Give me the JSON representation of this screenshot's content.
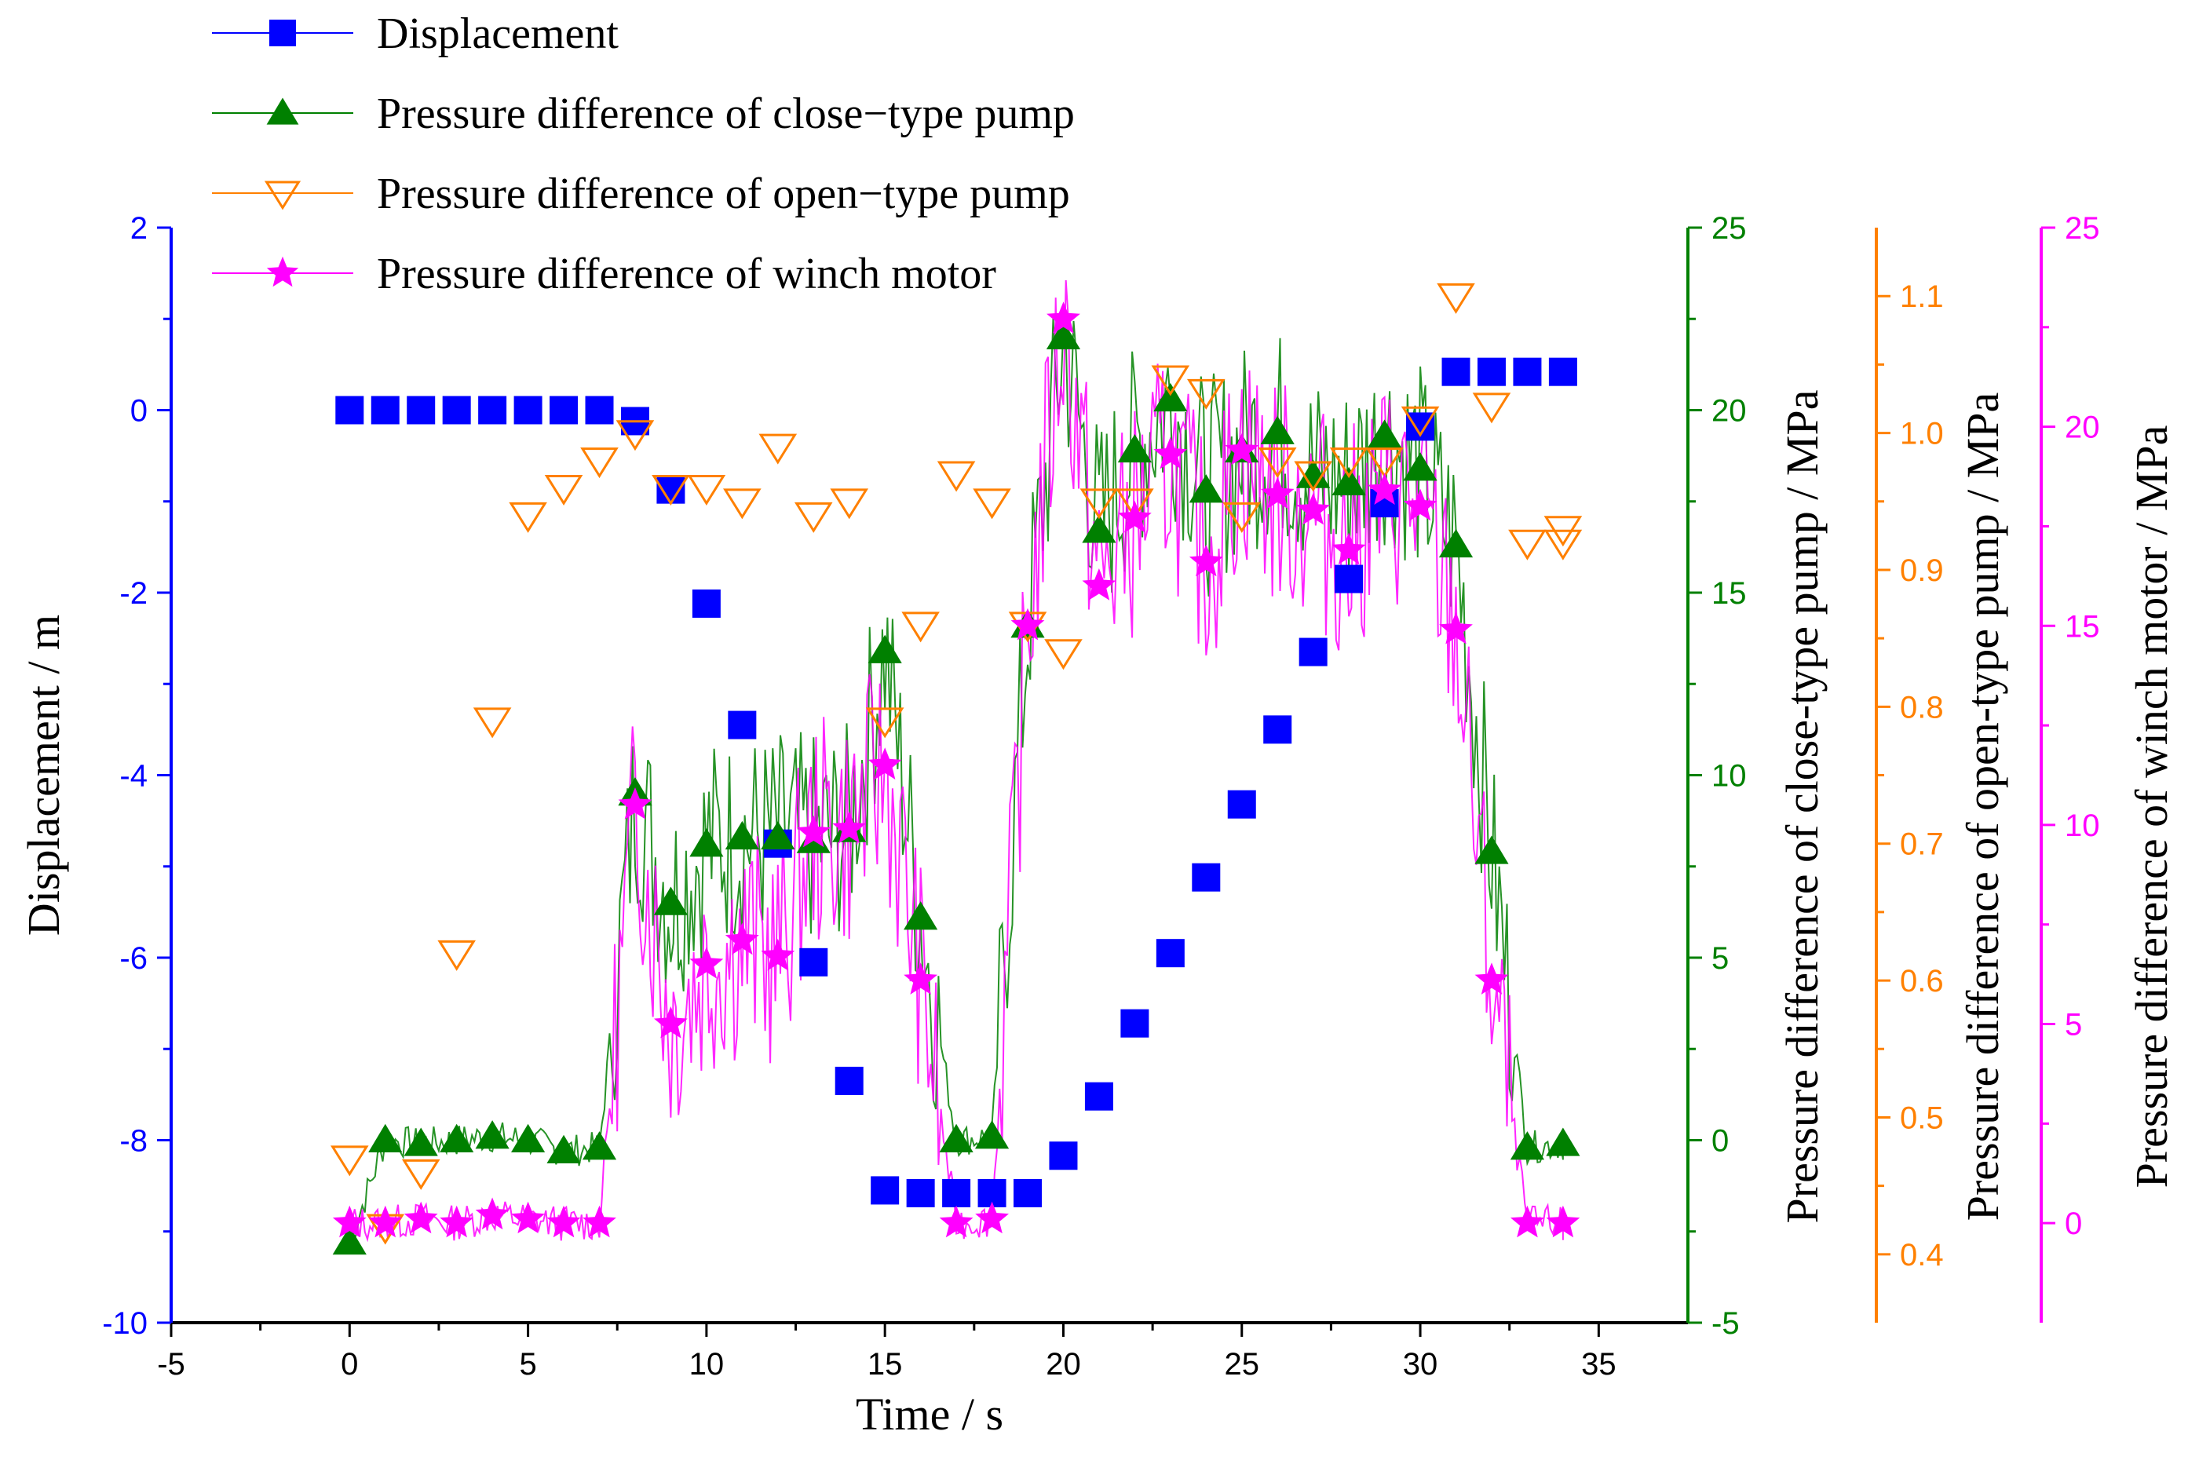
{
  "chart_data": {
    "type": "scatter",
    "colors": {
      "displacement": "#0000ff",
      "close_pump": "#008000",
      "open_pump": "#ff8000",
      "winch_motor": "#ff00ff",
      "frame": "#000000"
    },
    "x_axis": {
      "label": "Time / s",
      "range": [
        -5,
        37.5
      ],
      "ticks": [
        -5,
        0,
        5,
        10,
        15,
        20,
        25,
        30,
        35
      ],
      "tick_labels": [
        "-5",
        "0",
        "5",
        "10",
        "15",
        "20",
        "25",
        "30",
        "35"
      ]
    },
    "y_axes": [
      {
        "id": "displacement",
        "label": "Displacement  / m",
        "range": [
          -10,
          2
        ],
        "ticks": [
          -10,
          -8,
          -6,
          -4,
          -2,
          0,
          2
        ],
        "tick_labels": [
          "-10",
          "-8",
          "-6",
          "-4",
          "-2",
          "0",
          "2"
        ],
        "color": "#0000ff"
      },
      {
        "id": "close_pump",
        "label": "Pressure difference of close-type pump  / MPa",
        "range": [
          -5,
          25
        ],
        "ticks": [
          -5,
          0,
          5,
          10,
          15,
          20,
          25
        ],
        "tick_labels": [
          "-5",
          "0",
          "5",
          "10",
          "15",
          "20",
          "25"
        ],
        "color": "#008000"
      },
      {
        "id": "open_pump",
        "label": "Pressure difference of open-type pump  / MPa",
        "range": [
          0.35,
          1.15
        ],
        "ticks": [
          0.4,
          0.5,
          0.6,
          0.7,
          0.8,
          0.9,
          1.0,
          1.1
        ],
        "tick_labels": [
          "0.4",
          "0.5",
          "0.6",
          "0.7",
          "0.8",
          "0.9",
          "1.0",
          "1.1"
        ],
        "color": "#ff8000"
      },
      {
        "id": "winch_motor",
        "label": "Pressure difference of winch motor  / MPa",
        "range": [
          -2.5,
          25
        ],
        "ticks": [
          0,
          5,
          10,
          15,
          20,
          25
        ],
        "tick_labels": [
          "0",
          "5",
          "10",
          "15",
          "20",
          "25"
        ],
        "color": "#ff00ff"
      }
    ],
    "series": [
      {
        "name": "Displacement",
        "axis": "displacement",
        "marker": "square",
        "x": [
          0,
          1,
          2,
          3,
          4,
          5,
          6,
          7,
          8,
          9,
          10,
          11,
          12,
          13,
          14,
          15,
          16,
          17,
          18,
          19,
          20,
          21,
          22,
          23,
          24,
          25,
          26,
          27,
          28,
          29,
          30,
          31,
          32,
          33,
          34
        ],
        "y": [
          0,
          0,
          0,
          0,
          0,
          0,
          0,
          0,
          -0.12,
          -0.87,
          -2.12,
          -3.45,
          -4.75,
          -6.05,
          -7.35,
          -8.55,
          -8.58,
          -8.58,
          -8.58,
          -8.58,
          -8.17,
          -7.52,
          -6.72,
          -5.95,
          -5.12,
          -4.32,
          -3.5,
          -2.65,
          -1.85,
          -1.02,
          -0.18,
          0.42,
          0.42,
          0.42,
          0.42
        ]
      },
      {
        "name": "Pressure difference of close−type pump",
        "axis": "close_pump",
        "marker": "triangle-up",
        "x": [
          0,
          1,
          2,
          3,
          4,
          5,
          6,
          7,
          8,
          9,
          10,
          11,
          12,
          13,
          14,
          15,
          16,
          17,
          18,
          19,
          20,
          21,
          22,
          23,
          24,
          25,
          26,
          27,
          28,
          29,
          30,
          31,
          32,
          33,
          34
        ],
        "y": [
          -2.8,
          0,
          -0.1,
          0,
          0.1,
          0,
          -0.3,
          -0.2,
          9.5,
          6.5,
          8.1,
          8.3,
          8.3,
          8.2,
          8.5,
          13.4,
          6.1,
          0,
          0.1,
          14.1,
          22.0,
          16.7,
          18.9,
          20.3,
          17.8,
          18.9,
          19.4,
          18.2,
          18.0,
          19.3,
          18.4,
          16.3,
          7.9,
          -0.2,
          -0.1
        ]
      },
      {
        "name": "Pressure difference of open−type pump",
        "axis": "open_pump",
        "marker": "triangle-down-open",
        "x": [
          0,
          1,
          2,
          3,
          4,
          5,
          6,
          7,
          8,
          9,
          10,
          11,
          12,
          13,
          14,
          15,
          16,
          17,
          18,
          19,
          20,
          21,
          22,
          23,
          24,
          25,
          26,
          27,
          28,
          29,
          30,
          31,
          32,
          33,
          34,
          34
        ],
        "y": [
          0.47,
          0.42,
          0.46,
          0.62,
          0.79,
          0.94,
          0.96,
          0.98,
          1.0,
          0.96,
          0.96,
          0.95,
          0.99,
          0.94,
          0.95,
          0.79,
          0.86,
          0.97,
          0.95,
          0.86,
          0.84,
          0.95,
          0.95,
          1.04,
          1.03,
          0.94,
          0.98,
          0.97,
          0.98,
          0.98,
          1.01,
          1.1,
          1.02,
          0.92,
          0.92,
          0.93
        ]
      },
      {
        "name": "Pressure difference of winch motor",
        "axis": "winch_motor",
        "marker": "star",
        "x": [
          0,
          1,
          2,
          3,
          4,
          5,
          6,
          7,
          8,
          9,
          10,
          11,
          12,
          13,
          14,
          15,
          16,
          17,
          18,
          19,
          20,
          21,
          22,
          23,
          24,
          25,
          26,
          27,
          28,
          29,
          30,
          31,
          32,
          33,
          34
        ],
        "y": [
          0,
          0,
          0.1,
          0,
          0.2,
          0.1,
          0,
          0,
          10.5,
          5.0,
          6.5,
          7.1,
          6.7,
          9.8,
          9.9,
          11.5,
          6.1,
          0,
          0.1,
          15.0,
          22.7,
          16.0,
          17.7,
          19.3,
          16.6,
          19.4,
          18.3,
          17.9,
          16.9,
          18.4,
          18.0,
          14.9,
          6.1,
          0,
          0
        ]
      }
    ],
    "legend": {
      "position": "top-left",
      "entries": [
        "Displacement",
        "Pressure difference of close−type pump",
        "Pressure difference of open−type pump",
        "Pressure difference of winch motor"
      ]
    }
  }
}
